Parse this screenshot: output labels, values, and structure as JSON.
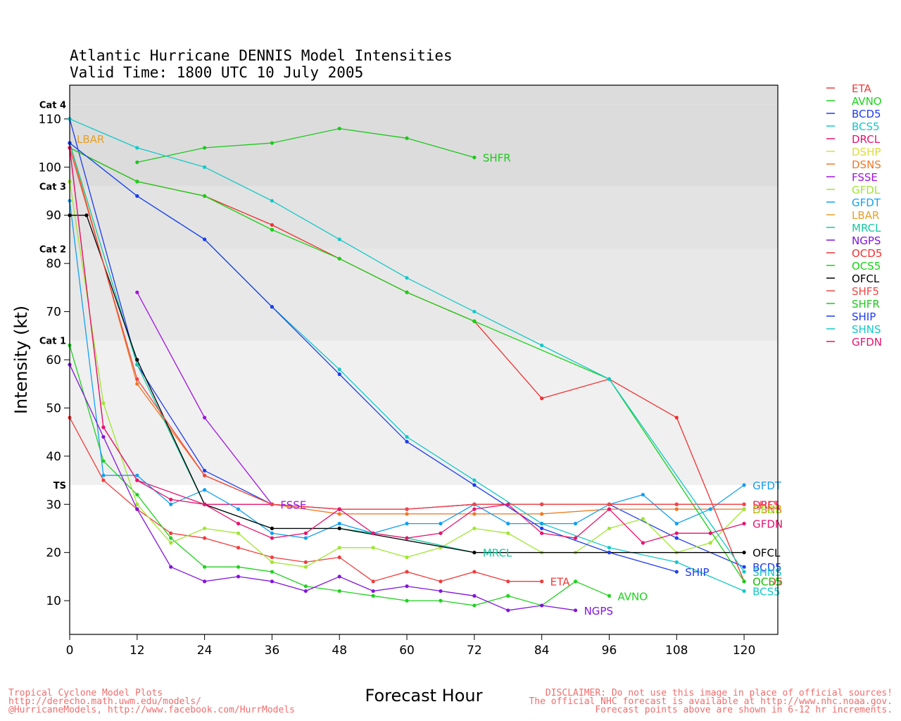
{
  "title_line1": "Atlantic Hurricane DENNIS Model Intensities",
  "title_line2": "Valid Time: 1800 UTC 10 July 2005",
  "footer": {
    "left": [
      "Tropical Cyclone Model Plots",
      "http://derecho.math.uwm.edu/models/",
      "@HurricaneModels, http://www.facebook.com/HurrModels"
    ],
    "right": [
      "DISCLAIMER: Do not use this image in place of official sources!",
      "The official NHC forecast is available at http://www.nhc.noaa.gov.",
      "Forecast points above are shown in 6-12 hr increments."
    ]
  },
  "chart_data": {
    "type": "line",
    "title": "Atlantic Hurricane DENNIS Model Intensities",
    "subtitle": "Valid Time: 1800 UTC 10 July 2005",
    "xlabel": "Forecast Hour",
    "ylabel": "Intensity (kt)",
    "xlim": [
      0,
      126
    ],
    "ylim": [
      3,
      117
    ],
    "xticks": [
      0,
      12,
      24,
      36,
      48,
      60,
      72,
      84,
      96,
      108,
      120
    ],
    "yticks": [
      10,
      20,
      30,
      40,
      50,
      60,
      70,
      80,
      90,
      100,
      110
    ],
    "grid": false,
    "legend_position": "right",
    "bands": [
      {
        "label": "TS",
        "from": 34,
        "to": 64,
        "color": "#f0f0f0"
      },
      {
        "label": "Cat 1",
        "from": 64,
        "to": 83,
        "color": "#e8e8e8"
      },
      {
        "label": "Cat 2",
        "from": 83,
        "to": 96,
        "color": "#e3e3e3"
      },
      {
        "label": "Cat 3",
        "from": 96,
        "to": 113,
        "color": "#dcdcdc"
      },
      {
        "label": "Cat 4",
        "from": 113,
        "to": 117,
        "color": "#dcdcdc"
      }
    ],
    "series": [
      {
        "name": "ETA",
        "color": "#f03c3c",
        "x": [
          0,
          6,
          12,
          18,
          24,
          30,
          36,
          42,
          48,
          54,
          60,
          66,
          72,
          78,
          84
        ],
        "y": [
          48,
          35,
          29,
          24,
          23,
          21,
          19,
          18,
          19,
          14,
          16,
          14,
          16,
          14,
          14
        ],
        "end_label": "ETA"
      },
      {
        "name": "AVNO",
        "color": "#1ed21e",
        "x": [
          0,
          6,
          12,
          18,
          24,
          30,
          36,
          42,
          48,
          54,
          60,
          66,
          72,
          78,
          84,
          90,
          96
        ],
        "y": [
          63,
          39,
          32,
          23,
          17,
          17,
          16,
          13,
          12,
          11,
          10,
          10,
          9,
          11,
          9,
          14,
          11
        ],
        "end_label": "AVNO"
      },
      {
        "name": "BCD5",
        "color": "#1e3cf0",
        "x": [
          0,
          12,
          24,
          36,
          48,
          60,
          72,
          84,
          96,
          108,
          120
        ],
        "y": [
          110,
          59,
          37,
          30,
          29,
          29,
          30,
          30,
          30,
          23,
          17
        ],
        "end_label": "BCD5"
      },
      {
        "name": "BCS5",
        "color": "#14c8c8",
        "x": [
          0,
          12,
          24,
          36,
          48,
          60,
          72,
          84,
          96,
          108,
          120
        ],
        "y": [
          105,
          94,
          85,
          71,
          58,
          44,
          35,
          26,
          21,
          18,
          12
        ],
        "end_label": "BCS5"
      },
      {
        "name": "DRCL",
        "color": "#e6146e",
        "x": [
          0,
          6,
          12,
          24,
          36,
          48,
          60,
          72,
          84,
          96,
          108,
          120
        ],
        "y": [
          104,
          46,
          35,
          30,
          30,
          29,
          29,
          30,
          30,
          30,
          30,
          30
        ],
        "end_label": "DRCL"
      },
      {
        "name": "DSHP",
        "color": "#dcdc3c",
        "x": [
          0,
          12,
          24,
          36,
          48,
          60,
          72,
          84,
          96,
          108,
          120
        ],
        "y": [
          105,
          55,
          36,
          30,
          28,
          28,
          28,
          28,
          29,
          29,
          29
        ],
        "end_label": "DSHP"
      },
      {
        "name": "DSNS",
        "color": "#f07828",
        "x": [
          0,
          12,
          24,
          36,
          48,
          60,
          72,
          84,
          96,
          108,
          120
        ],
        "y": [
          105,
          55,
          36,
          30,
          28,
          28,
          28,
          28,
          29,
          29,
          29
        ],
        "end_label": "DSNS"
      },
      {
        "name": "FSSE",
        "color": "#a014dc",
        "x": [
          12,
          24,
          36
        ],
        "y": [
          74,
          48,
          30
        ],
        "end_label": "FSSE"
      },
      {
        "name": "GFDL",
        "color": "#a0e632",
        "x": [
          0,
          6,
          12,
          18,
          24,
          30,
          36,
          42,
          48,
          54,
          60,
          66,
          72,
          78,
          84,
          90,
          96,
          102,
          108,
          114,
          120
        ],
        "y": [
          97,
          51,
          30,
          22,
          25,
          24,
          18,
          17,
          21,
          21,
          19,
          21,
          25,
          24,
          20,
          20,
          25,
          27,
          20,
          22,
          29
        ],
        "end_label": "GFDL"
      },
      {
        "name": "GFDT",
        "color": "#14a0f0",
        "x": [
          0,
          6,
          12,
          18,
          24,
          30,
          36,
          42,
          48,
          54,
          60,
          66,
          72,
          78,
          84,
          90,
          96,
          102,
          108,
          114,
          120
        ],
        "y": [
          93,
          36,
          36,
          30,
          33,
          29,
          24,
          23,
          26,
          24,
          26,
          26,
          30,
          26,
          26,
          26,
          30,
          32,
          26,
          29,
          34
        ],
        "end_label": "GFDT"
      },
      {
        "name": "LBAR",
        "color": "#e6a028",
        "x": [
          0
        ],
        "y": [
          105
        ],
        "end_label": "LBAR"
      },
      {
        "name": "MRCL",
        "color": "#14c8a0",
        "x": [
          0,
          12,
          24,
          36,
          48,
          60,
          72
        ],
        "y": [
          105,
          59,
          30,
          25,
          25,
          23,
          20
        ],
        "end_label": "MRCL"
      },
      {
        "name": "NGPS",
        "color": "#8214dc",
        "x": [
          0,
          6,
          12,
          18,
          24,
          30,
          36,
          42,
          48,
          54,
          60,
          66,
          72,
          78,
          84,
          90
        ],
        "y": [
          59,
          44,
          29,
          17,
          14,
          15,
          14,
          12,
          15,
          12,
          13,
          12,
          11,
          8,
          9,
          8
        ],
        "end_label": "NGPS"
      },
      {
        "name": "OCD5",
        "color": "#f03232",
        "x": [
          0,
          12,
          24,
          36,
          48,
          60,
          72,
          84,
          96,
          108,
          120
        ],
        "y": [
          104,
          97,
          94,
          88,
          81,
          74,
          68,
          52,
          56,
          48,
          14
        ],
        "end_label": "OCD5"
      },
      {
        "name": "OCS5",
        "color": "#14d214",
        "x": [
          0,
          12,
          24,
          36,
          48,
          60,
          72,
          96,
          120
        ],
        "y": [
          104,
          97,
          94,
          87,
          81,
          74,
          68,
          56,
          14
        ],
        "end_label": "OCS5"
      },
      {
        "name": "OFCL",
        "color": "#000000",
        "x": [
          0,
          3,
          12,
          24,
          36,
          48,
          72,
          96,
          120
        ],
        "y": [
          90,
          90,
          60,
          30,
          25,
          25,
          20,
          20,
          20
        ],
        "end_label": "OFCL"
      },
      {
        "name": "SHF5",
        "color": "#f04646",
        "x": [
          0,
          12,
          24,
          36,
          48,
          60,
          72,
          84,
          96,
          108,
          120
        ],
        "y": [
          104,
          56,
          36,
          30,
          29,
          29,
          30,
          30,
          30,
          30,
          30
        ],
        "end_label": "SHF5"
      },
      {
        "name": "SHFR",
        "color": "#1ec81e",
        "x": [
          12,
          24,
          36,
          48,
          60,
          72
        ],
        "y": [
          101,
          104,
          105,
          108,
          106,
          102
        ],
        "end_label": "SHFR"
      },
      {
        "name": "SHIP",
        "color": "#1e3cf0",
        "x": [
          0,
          12,
          24,
          36,
          48,
          60,
          72,
          84,
          96,
          108
        ],
        "y": [
          105,
          94,
          85,
          71,
          57,
          43,
          34,
          25,
          20,
          16
        ],
        "end_label": "SHIP"
      },
      {
        "name": "SHNS",
        "color": "#14c8c8",
        "x": [
          0,
          12,
          24,
          36,
          48,
          60,
          72,
          84,
          96,
          120
        ],
        "y": [
          110,
          104,
          100,
          93,
          85,
          77,
          70,
          63,
          56,
          16
        ],
        "end_label": "SHNS"
      },
      {
        "name": "GFDN",
        "color": "#e6146e",
        "x": [
          0,
          6,
          12,
          18,
          24,
          30,
          36,
          42,
          48,
          54,
          60,
          66,
          72,
          78,
          84,
          90,
          96,
          102,
          108,
          114,
          120
        ],
        "y": [
          104,
          46,
          35,
          31,
          30,
          26,
          23,
          24,
          29,
          24,
          23,
          24,
          29,
          30,
          24,
          23,
          29,
          22,
          24,
          24,
          26
        ],
        "end_label": "GFDN"
      }
    ]
  }
}
